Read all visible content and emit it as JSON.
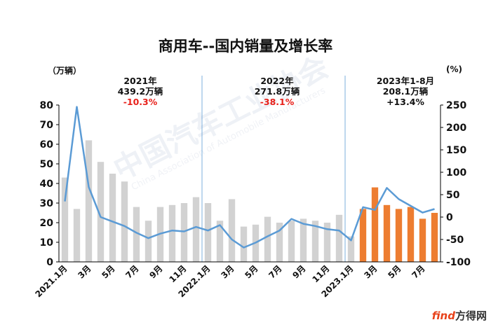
{
  "chart_data": {
    "type": "bar+line",
    "title": "商用车--国内销量及增长率",
    "left_unit": "（万辆）",
    "right_unit": "(%)",
    "left_ylim": [
      0,
      80
    ],
    "left_ticks": [
      0,
      10,
      20,
      30,
      40,
      50,
      60,
      70,
      80
    ],
    "right_ylim": [
      -100,
      250
    ],
    "right_ticks": [
      -100,
      -50,
      0,
      50,
      100,
      150,
      200,
      250
    ],
    "x_tick_labels": [
      "2021.1月",
      "3月",
      "5月",
      "7月",
      "9月",
      "11月",
      "2022.1月",
      "3月",
      "5月",
      "7月",
      "9月",
      "11月",
      "2023.1月",
      "3月",
      "5月",
      "7月"
    ],
    "months": [
      "2021.1",
      "2021.2",
      "2021.3",
      "2021.4",
      "2021.5",
      "2021.6",
      "2021.7",
      "2021.8",
      "2021.9",
      "2021.10",
      "2021.11",
      "2021.12",
      "2022.1",
      "2022.2",
      "2022.3",
      "2022.4",
      "2022.5",
      "2022.6",
      "2022.7",
      "2022.8",
      "2022.9",
      "2022.10",
      "2022.11",
      "2022.12",
      "2023.1",
      "2023.2",
      "2023.3",
      "2023.4",
      "2023.5",
      "2023.6",
      "2023.7",
      "2023.8"
    ],
    "series": [
      {
        "kind": "bar",
        "axis": "left",
        "values": [
          43,
          27,
          62,
          51,
          45,
          41,
          28,
          21,
          28,
          29,
          30,
          33,
          30,
          21,
          32,
          18,
          19,
          23,
          20,
          21,
          22,
          21,
          20,
          24,
          13,
          27,
          38,
          29,
          27,
          28,
          22,
          25
        ]
      },
      {
        "kind": "line",
        "axis": "right",
        "values": [
          35,
          246,
          67,
          0,
          -10,
          -20,
          -35,
          -47,
          -37,
          -30,
          -32,
          -22,
          -30,
          -18,
          -50,
          -68,
          -57,
          -43,
          -30,
          -4,
          -15,
          -20,
          -27,
          -30,
          -52,
          22,
          16,
          65,
          40,
          25,
          10,
          18
        ]
      }
    ],
    "colors": {
      "bar_gray": "#d2d2d2",
      "bar_orange": "#ed7d31",
      "line": "#5b9bd5",
      "divider": "#5b9bd5",
      "axis": "#000000"
    },
    "annotations": [
      {
        "line1": "2021年",
        "line2": "439.2万辆",
        "line3": "-10.3%"
      },
      {
        "line1": "2022年",
        "line2": "271.8万辆",
        "line3": "-38.1%"
      },
      {
        "line1": "2023年1-8月",
        "line2": "208.1万辆",
        "line3": "+13.4%"
      }
    ]
  },
  "watermark": {
    "text": "中国汽车工业协会",
    "sub": "China Association of Automobile Manufacturers"
  },
  "brand": {
    "part1": "find",
    "part2": "方得网"
  }
}
